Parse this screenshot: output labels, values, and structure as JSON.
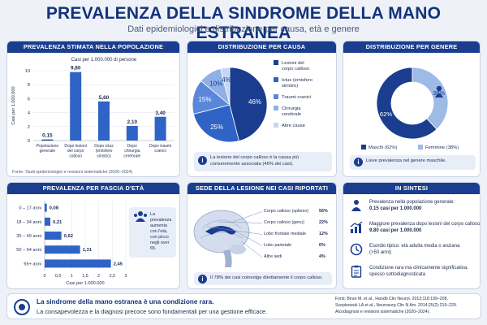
{
  "header": {
    "title": "PREVALENZA DELLA SINDROME DELLA MANO ESTRANEA",
    "subtitle": "Dati epidemiologici e distribuzione per causa, età e genere"
  },
  "panels": {
    "prevalence": "PREVALENZA STIMATA NELLA POPOLAZIONE",
    "cause": "DISTRIBUZIONE PER CAUSA",
    "gender": "DISTRIBUZIONE PER GENERE",
    "age": "PREVALENZA PER FASCIA D'ETÀ",
    "lesion": "SEDE DELLA LESIONE NEI CASI RIPORTATI",
    "summary": "IN SINTESI"
  },
  "chart_data": [
    {
      "type": "bar",
      "title": "PREVALENZA STIMATA NELLA POPOLAZIONE",
      "subtitle": "Casi per 1.000.000 di persone",
      "ylabel": "Casi per 1.000.000",
      "ylim": [
        0,
        10
      ],
      "yticks": [
        "0",
        "2",
        "4",
        "6",
        "8",
        "10"
      ],
      "categories": [
        "Popolazione generale",
        "Dopo lesioni del corpo calloso",
        "Dopo ictus (emisfero sinistro)",
        "Dopo chirurgia cerebrale",
        "Dopo traumi cranici"
      ],
      "values": [
        0.15,
        9.8,
        5.6,
        2.1,
        3.4
      ],
      "value_labels": [
        "0,15",
        "9,80",
        "5,60",
        "2,10",
        "3,40"
      ],
      "source": "Fonte: Studi epidemiologici e revisioni sistematiche (2020–2024)"
    },
    {
      "type": "pie",
      "title": "DISTRIBUZIONE PER CAUSA",
      "categories": [
        "Lesioni del corpo calloso",
        "Ictus (emisfero sinistro)",
        "Traumi cranici",
        "Chirurgia cerebrale",
        "Altre cause"
      ],
      "values": [
        46,
        25,
        15,
        10,
        4
      ],
      "value_labels": [
        "46%",
        "25%",
        "15%",
        "10%",
        "4%"
      ],
      "colors": [
        "#1a3d8f",
        "#2f63c6",
        "#5a87d8",
        "#8fb0e6",
        "#c5d6f2"
      ],
      "note": "La lesione del corpo calloso è la causa più comunemente associata (46% dei casi)."
    },
    {
      "type": "pie",
      "title": "DISTRIBUZIONE PER GENERE",
      "categories": [
        "Maschi (62%)",
        "Femmine (38%)"
      ],
      "values": [
        62,
        38
      ],
      "value_labels": [
        "62%",
        "38%"
      ],
      "colors": [
        "#1a3d8f",
        "#9ebae6"
      ],
      "note": "Lieve prevalenza nel genere maschile."
    },
    {
      "type": "bar",
      "orientation": "horizontal",
      "title": "PREVALENZA PER FASCIA D'ETÀ",
      "xlabel": "Casi per 1.000.000",
      "xlim": [
        0,
        3
      ],
      "xticks": [
        "0",
        "0,5",
        "1",
        "1,5",
        "2",
        "2,5",
        "3"
      ],
      "categories": [
        "0 – 17 anni",
        "18 – 34 anni",
        "35 – 49 anni",
        "50 – 64 anni",
        "65+ anni"
      ],
      "values": [
        0.08,
        0.21,
        0.62,
        1.31,
        2.45
      ],
      "value_labels": [
        "0,08",
        "0,21",
        "0,62",
        "1,31",
        "2,45"
      ],
      "callout": "La prevalenza aumenta con l'età, con picco negli over 65."
    },
    {
      "type": "table",
      "title": "SEDE DELLA LESIONE NEI CASI RIPORTATI",
      "rows": [
        {
          "label": "Corpo calloso (splenio)",
          "value": "56%"
        },
        {
          "label": "Corpo calloso (genu)",
          "value": "22%"
        },
        {
          "label": "Lobo frontale mediale",
          "value": "12%"
        },
        {
          "label": "Lobo parietale",
          "value": "6%"
        },
        {
          "label": "Altre sedi",
          "value": "4%"
        }
      ],
      "note": "Il 78% dei casi coinvolge direttamente il corpo calloso."
    }
  ],
  "summary": [
    {
      "icon": "people-icon",
      "title": "Prevalenza nella popolazione generale:",
      "body": "0,15 casi per 1.000.000"
    },
    {
      "icon": "trend-up-icon",
      "title": "Maggiore prevalenza dopo lesioni del corpo calloso:",
      "body": "9,80 casi per 1.000.000"
    },
    {
      "icon": "clock-icon",
      "title": "Esordio tipico: età adulta media o anziana",
      "body": "(>50 anni)"
    },
    {
      "icon": "clipboard-icon",
      "title": "Condizione rara ma clinicamente significativa,",
      "body": "spesso sottodiagnosticata"
    }
  ],
  "footer": {
    "headline": "La sindrome della mano estranea è una condizione rara.",
    "text": "La consapevolezza e la diagnosi precoce sono fondamentali per una gestione efficace.",
    "sources": [
      "Fonti:  Biran M. et al., Handb Clin Neurol. 2013;118:199–208.",
      "Scepkowski LA et al., Neurosurg Clin N Am. 2014;25(2):219–229.",
      "Alcodiagnosi e revisioni sistematiche (2020–2024)."
    ]
  },
  "colors": {
    "primary": "#1a3d8f",
    "accent": "#2f63c6",
    "light": "#9ebae6",
    "background": "#eef2f8"
  }
}
